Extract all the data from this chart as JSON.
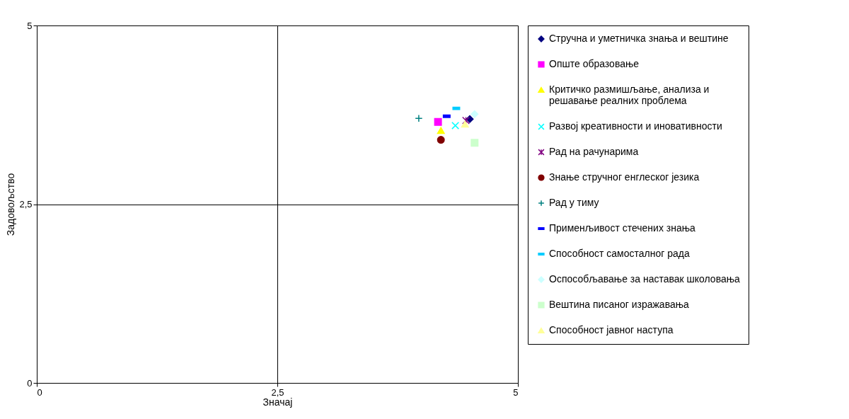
{
  "chart_data": {
    "type": "scatter",
    "xlabel": "Значај",
    "ylabel": "Задовољство",
    "xlim": [
      0,
      5
    ],
    "ylim": [
      0,
      5
    ],
    "xticks": [
      0,
      {
        "value": 2.5,
        "label": "2,5"
      },
      5
    ],
    "yticks": [
      0,
      {
        "value": 2.5,
        "label": "2,5"
      },
      5
    ],
    "grid": true,
    "legend": "right",
    "series": [
      {
        "name": "Стручна и уметничка знања и вештине",
        "color": "#000080",
        "marker": "diamond",
        "x": [
          4.5
        ],
        "values": [
          3.69
        ]
      },
      {
        "name": "Опште образовање",
        "color": "#ff00ff",
        "marker": "square",
        "x": [
          4.17
        ],
        "values": [
          3.65
        ]
      },
      {
        "name": "Критичко размишљање, анализа и решавање реалних проблема",
        "color": "#ffff00",
        "marker": "triangle",
        "x": [
          4.2
        ],
        "values": [
          3.53
        ]
      },
      {
        "name": "Развој креативности и иновативности",
        "color": "#00ffff",
        "marker": "x",
        "x": [
          4.35
        ],
        "values": [
          3.6
        ]
      },
      {
        "name": "Рад на рачунарима",
        "color": "#800080",
        "marker": "cross",
        "x": [
          4.46
        ],
        "values": [
          3.67
        ]
      },
      {
        "name": "Знање стручног енглеског језика",
        "color": "#800000",
        "marker": "circle",
        "x": [
          4.2
        ],
        "values": [
          3.4
        ]
      },
      {
        "name": "Рад у тиму",
        "color": "#008080",
        "marker": "cross",
        "x": [
          3.97
        ],
        "values": [
          3.7
        ]
      },
      {
        "name": "Применљивост стечених знања",
        "color": "#0000ff",
        "x": [
          4.26
        ],
        "values": [
          3.73
        ]
      },
      {
        "name": "Способност самосталног рада",
        "color": "#00ccff",
        "x": [
          4.36
        ],
        "values": [
          3.84
        ]
      },
      {
        "name": "Оспособљавање за наставак школовања",
        "color": "#ccffff",
        "marker": "diamond",
        "x": [
          4.55
        ],
        "values": [
          3.76
        ]
      },
      {
        "name": "Вештина писаног изражавања",
        "color": "#ccffcc",
        "marker": "square",
        "x": [
          4.55
        ],
        "values": [
          3.36
        ]
      },
      {
        "name": "Способност јавног наступа",
        "color": "#ffff99",
        "marker": "triangle",
        "x": [
          4.45
        ],
        "values": [
          3.62
        ]
      }
    ]
  }
}
